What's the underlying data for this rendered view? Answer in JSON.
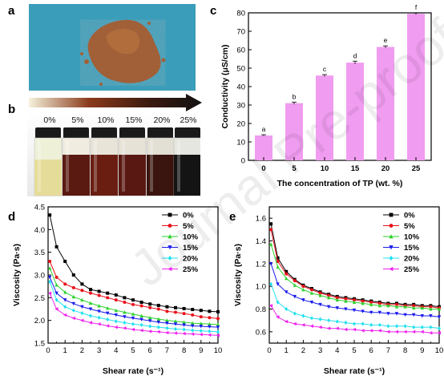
{
  "panels": {
    "a": {
      "letter": "a"
    },
    "b": {
      "letter": "b",
      "labels": [
        "0%",
        "5%",
        "10%",
        "15%",
        "20%",
        "25%"
      ]
    },
    "c": {
      "letter": "c"
    },
    "d": {
      "letter": "d"
    },
    "e": {
      "letter": "e"
    }
  },
  "watermark": {
    "text": "Journal Pre-proof"
  },
  "colors": {
    "panel_a_background": "#3a9db9",
    "powder": "#a8643a",
    "bar_fill": "#f09cf0",
    "series": [
      "#000000",
      "#e8101a",
      "#2ed12e",
      "#1a1aee",
      "#22e0ee",
      "#ee22ee"
    ]
  },
  "chart_data": [
    {
      "id": "c",
      "type": "bar",
      "categories": [
        "0",
        "5",
        "10",
        "15",
        "20",
        "25"
      ],
      "values": [
        13.5,
        31,
        46,
        53,
        61.5,
        79.5
      ],
      "errors": [
        0.4,
        0.6,
        0.5,
        0.8,
        0.6,
        0.4
      ],
      "significance_letters": [
        "a",
        "b",
        "c",
        "d",
        "e",
        "f"
      ],
      "xlabel": "The concentration of TP (wt. %)",
      "ylabel": "Conductivity (μS/cm)",
      "ylim": [
        0,
        80
      ],
      "yticks": [
        0,
        10,
        20,
        30,
        40,
        50,
        60,
        70,
        80
      ],
      "grid": false
    },
    {
      "id": "d",
      "type": "line",
      "xlabel": "Shear rate (s⁻¹)",
      "ylabel": "Viscosity (Pa·s)",
      "xlim": [
        0,
        10
      ],
      "ylim": [
        1.5,
        4.5
      ],
      "xticks": [
        0,
        1,
        2,
        3,
        4,
        5,
        6,
        7,
        8,
        9,
        10
      ],
      "yticks": [
        1.5,
        2.0,
        2.5,
        3.0,
        3.5,
        4.0,
        4.5
      ],
      "legend_position": "top-right",
      "x": [
        0.1,
        0.5,
        1.0,
        1.5,
        2.0,
        2.5,
        3.0,
        3.5,
        4.0,
        4.5,
        5.0,
        5.5,
        6.0,
        6.5,
        7.0,
        7.5,
        8.0,
        8.5,
        9.0,
        9.5,
        10.0
      ],
      "series": [
        {
          "name": "0%",
          "values": [
            4.32,
            3.62,
            3.3,
            3.0,
            2.8,
            2.68,
            2.64,
            2.6,
            2.56,
            2.5,
            2.45,
            2.4,
            2.36,
            2.33,
            2.3,
            2.28,
            2.26,
            2.24,
            2.22,
            2.2,
            2.19
          ]
        },
        {
          "name": "5%",
          "values": [
            3.3,
            2.95,
            2.8,
            2.72,
            2.66,
            2.6,
            2.55,
            2.5,
            2.45,
            2.4,
            2.35,
            2.32,
            2.28,
            2.25,
            2.2,
            2.18,
            2.15,
            2.12,
            2.08,
            2.06,
            2.04
          ]
        },
        {
          "name": "10%",
          "values": [
            3.15,
            2.78,
            2.62,
            2.52,
            2.45,
            2.38,
            2.32,
            2.27,
            2.22,
            2.18,
            2.14,
            2.1,
            2.06,
            2.03,
            2.0,
            1.98,
            1.96,
            1.94,
            1.93,
            1.92,
            1.91
          ]
        },
        {
          "name": "15%",
          "values": [
            2.95,
            2.6,
            2.45,
            2.37,
            2.3,
            2.25,
            2.2,
            2.16,
            2.12,
            2.08,
            2.05,
            2.02,
            1.99,
            1.96,
            1.94,
            1.92,
            1.9,
            1.88,
            1.87,
            1.86,
            1.85
          ]
        },
        {
          "name": "20%",
          "values": [
            2.85,
            2.45,
            2.3,
            2.22,
            2.16,
            2.1,
            2.06,
            2.02,
            1.98,
            1.95,
            1.92,
            1.9,
            1.87,
            1.85,
            1.83,
            1.81,
            1.8,
            1.78,
            1.77,
            1.76,
            1.75
          ]
        },
        {
          "name": "25%",
          "values": [
            2.6,
            2.25,
            2.12,
            2.05,
            2.0,
            1.95,
            1.92,
            1.88,
            1.85,
            1.83,
            1.8,
            1.78,
            1.76,
            1.75,
            1.73,
            1.72,
            1.71,
            1.7,
            1.69,
            1.68,
            1.67
          ]
        }
      ]
    },
    {
      "id": "e",
      "type": "line",
      "xlabel": "Shear rate (s⁻¹)",
      "ylabel": "Viscosity (Pa·s)",
      "xlim": [
        0,
        10
      ],
      "ylim": [
        0.5,
        1.7
      ],
      "xticks": [
        0,
        1,
        2,
        3,
        4,
        5,
        6,
        7,
        8,
        9,
        10
      ],
      "yticks": [
        0.6,
        0.8,
        1.0,
        1.2,
        1.4,
        1.6
      ],
      "legend_position": "top-right",
      "x": [
        0.1,
        0.5,
        1.0,
        1.5,
        2.0,
        2.5,
        3.0,
        3.5,
        4.0,
        4.5,
        5.0,
        5.5,
        6.0,
        6.5,
        7.0,
        7.5,
        8.0,
        8.5,
        9.0,
        9.5,
        10.0
      ],
      "series": [
        {
          "name": "0%",
          "values": [
            1.55,
            1.25,
            1.13,
            1.06,
            1.01,
            0.98,
            0.95,
            0.93,
            0.91,
            0.9,
            0.89,
            0.88,
            0.87,
            0.86,
            0.85,
            0.85,
            0.84,
            0.84,
            0.83,
            0.83,
            0.82
          ]
        },
        {
          "name": "5%",
          "values": [
            1.5,
            1.22,
            1.11,
            1.05,
            1.0,
            0.97,
            0.94,
            0.92,
            0.9,
            0.89,
            0.88,
            0.87,
            0.86,
            0.85,
            0.84,
            0.84,
            0.83,
            0.83,
            0.82,
            0.82,
            0.81
          ]
        },
        {
          "name": "10%",
          "values": [
            1.37,
            1.17,
            1.07,
            1.01,
            0.97,
            0.94,
            0.92,
            0.9,
            0.88,
            0.87,
            0.86,
            0.85,
            0.84,
            0.83,
            0.83,
            0.82,
            0.82,
            0.81,
            0.81,
            0.8,
            0.8
          ]
        },
        {
          "name": "15%",
          "values": [
            1.2,
            1.02,
            0.95,
            0.91,
            0.88,
            0.86,
            0.84,
            0.82,
            0.81,
            0.8,
            0.79,
            0.78,
            0.77,
            0.77,
            0.76,
            0.76,
            0.75,
            0.75,
            0.74,
            0.74,
            0.73
          ]
        },
        {
          "name": "20%",
          "values": [
            1.02,
            0.86,
            0.8,
            0.76,
            0.74,
            0.72,
            0.71,
            0.7,
            0.69,
            0.68,
            0.67,
            0.67,
            0.66,
            0.66,
            0.65,
            0.65,
            0.65,
            0.64,
            0.64,
            0.64,
            0.63
          ]
        },
        {
          "name": "25%",
          "values": [
            0.83,
            0.73,
            0.69,
            0.67,
            0.66,
            0.65,
            0.64,
            0.63,
            0.63,
            0.62,
            0.62,
            0.61,
            0.61,
            0.61,
            0.6,
            0.6,
            0.6,
            0.6,
            0.6,
            0.59,
            0.59
          ]
        }
      ]
    }
  ]
}
